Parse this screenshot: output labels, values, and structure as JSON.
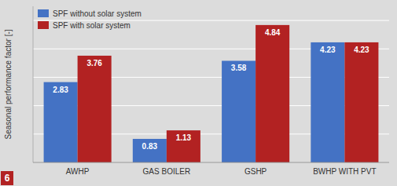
{
  "chart_data": {
    "type": "bar",
    "categories": [
      "AWHP",
      "GAS BOILER",
      "GSHP",
      "BWHP WITH PVT"
    ],
    "series": [
      {
        "name": "SPF without solar system",
        "color": "#4472C4",
        "values": [
          2.83,
          0.83,
          3.58,
          4.23
        ]
      },
      {
        "name": "SPF with solar system",
        "color": "#B22222",
        "values": [
          3.76,
          1.13,
          4.84,
          4.23
        ]
      }
    ],
    "y_label": "Seasonal performance factor [-]",
    "ylim": [
      0,
      5.5
    ],
    "yticks": [
      0,
      1,
      2,
      3,
      4,
      5
    ],
    "grid": true,
    "legend": "upper left",
    "data_labels": true,
    "tick_labels": "x",
    "annotations": [
      "6"
    ]
  }
}
